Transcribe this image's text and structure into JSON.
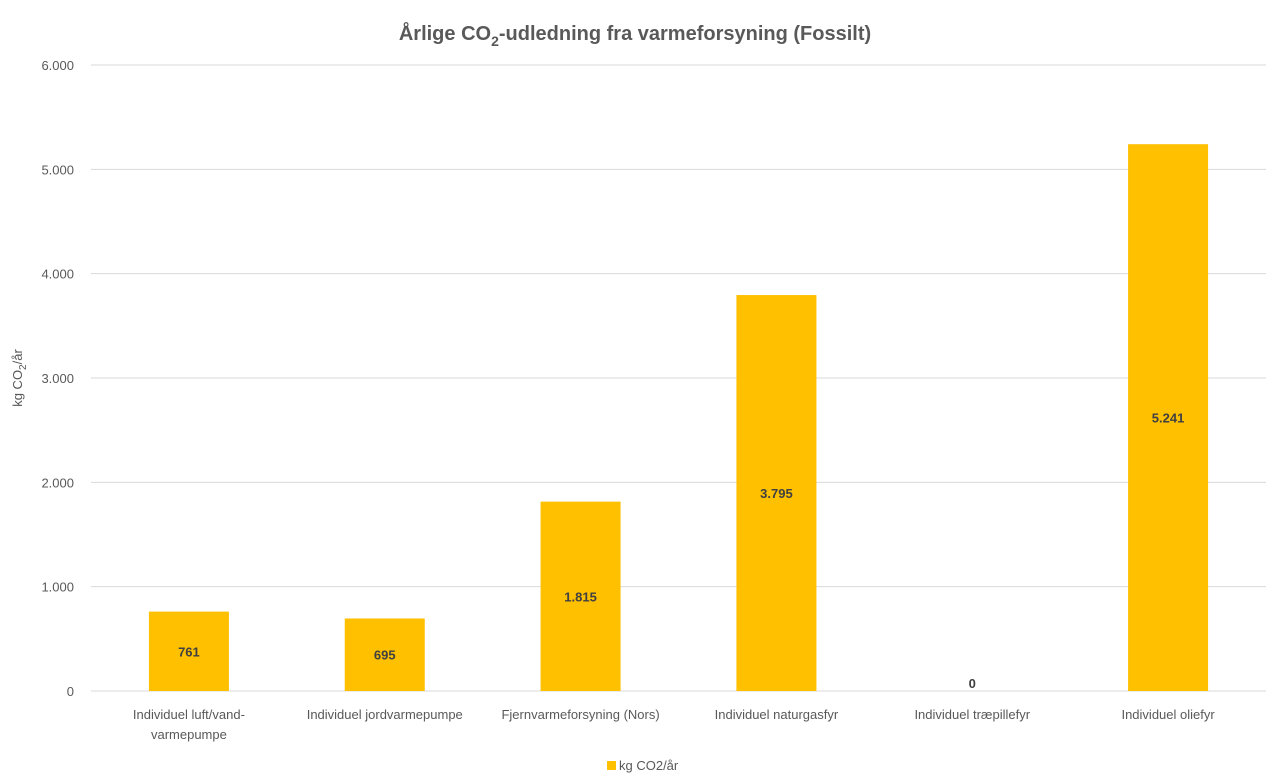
{
  "chart_data": {
    "type": "bar",
    "title": {
      "prefix": "Årlige CO",
      "subscript": "2",
      "suffix": "-udledning fra varmeforsyning (Fossilt)"
    },
    "ylabel": {
      "prefix": "kg CO",
      "subscript": "2",
      "suffix": "/år"
    },
    "xlabel": "",
    "ylim": [
      0,
      6000
    ],
    "yticks": [
      0,
      1000,
      2000,
      3000,
      4000,
      5000,
      6000
    ],
    "ytick_labels": [
      "0",
      "1.000",
      "2.000",
      "3.000",
      "4.000",
      "5.000",
      "6.000"
    ],
    "grid": true,
    "legend_position": "bottom",
    "categories": [
      [
        "Individuel luft/vand-",
        "varmepumpe"
      ],
      [
        "Individuel jordvarmepumpe"
      ],
      [
        "Fjernvarmeforsyning (Nors)"
      ],
      [
        "Individuel naturgasfyr"
      ],
      [
        "Individuel træpillefyr"
      ],
      [
        "Individuel oliefyr"
      ]
    ],
    "series": [
      {
        "name": "kg CO2/år",
        "color": "#FFC000",
        "values": [
          761,
          695,
          1815,
          3795,
          0,
          5241
        ],
        "value_labels": [
          "761",
          "695",
          "1.815",
          "3.795",
          "0",
          "5.241"
        ]
      }
    ]
  }
}
